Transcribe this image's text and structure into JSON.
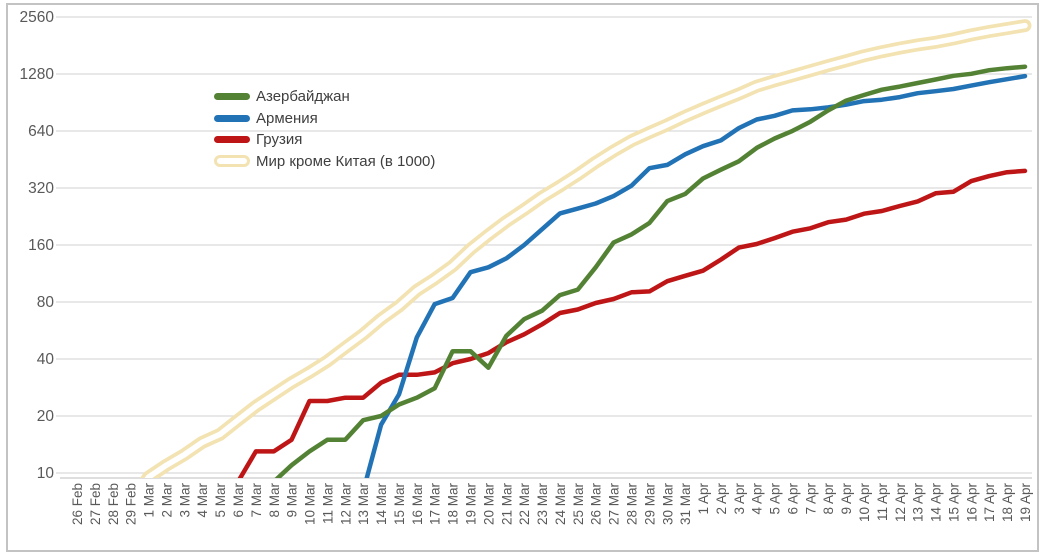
{
  "frame": {
    "border_color": "#C3C3C3",
    "background": "#FFFFFF"
  },
  "axis_style": {
    "grid_color": "#D9D9D9",
    "axis_line_color": "#C9C9C9",
    "tick_label_color": "#595959"
  },
  "legend": {
    "position": "inside-top-left",
    "text_color": "#3F3F3F"
  },
  "chart_data": {
    "type": "line",
    "title": "",
    "xlabel": "",
    "ylabel": "",
    "y_scale": "log2",
    "ylim": [
      10,
      2560
    ],
    "grid": "horizontal",
    "legend_position": "top-left-inside",
    "y_ticks": [
      10,
      20,
      40,
      80,
      160,
      320,
      640,
      1280,
      2560
    ],
    "x": [
      "26 Feb",
      "27 Feb",
      "28 Feb",
      "29 Feb",
      "1 Mar",
      "2 Mar",
      "3 Mar",
      "4 Mar",
      "5 Mar",
      "6 Mar",
      "7 Mar",
      "8 Mar",
      "9 Mar",
      "10 Mar",
      "11 Mar",
      "12 Mar",
      "13 Mar",
      "14 Mar",
      "15 Mar",
      "16 Mar",
      "17 Mar",
      "18 Mar",
      "19 Mar",
      "20 Mar",
      "21 Mar",
      "22 Mar",
      "23 Mar",
      "24 Mar",
      "25 Mar",
      "26 Mar",
      "27 Mar",
      "28 Mar",
      "29 Mar",
      "30 Mar",
      "31 Mar",
      "1 Apr",
      "2 Apr",
      "3 Apr",
      "4 Apr",
      "5 Apr",
      "6 Apr",
      "7 Apr",
      "8 Apr",
      "9 Apr",
      "10 Apr",
      "11 Apr",
      "12 Apr",
      "13 Apr",
      "14 Apr",
      "15 Apr",
      "16 Apr",
      "17 Apr",
      "18 Apr",
      "19 Apr"
    ],
    "series": [
      {
        "name": "Азербайджан",
        "color": "#548235",
        "line_style": "solid",
        "values": [
          null,
          null,
          null,
          null,
          null,
          null,
          null,
          null,
          null,
          null,
          null,
          9,
          11,
          13,
          15,
          15,
          19,
          20,
          23,
          25,
          28,
          44,
          44,
          36,
          53,
          65,
          72,
          87,
          93,
          122,
          165,
          182,
          209,
          273,
          298,
          359,
          400,
          443,
          521,
          584,
          641,
          717,
          822,
          926,
          991,
          1058,
          1098,
          1148,
          1197,
          1253,
          1283,
          1340,
          1373,
          1398
        ]
      },
      {
        "name": "Армения",
        "color": "#2273B6",
        "line_style": "solid",
        "values": [
          null,
          null,
          null,
          null,
          null,
          null,
          null,
          null,
          null,
          null,
          null,
          null,
          null,
          null,
          null,
          4,
          8,
          18,
          26,
          52,
          78,
          84,
          115,
          122,
          136,
          160,
          194,
          235,
          249,
          265,
          290,
          329,
          407,
          424,
          482,
          532,
          571,
          663,
          736,
          770,
          822,
          833,
          853,
          881,
          921,
          937,
          967,
          1013,
          1039,
          1067,
          1111,
          1159,
          1201,
          1248
        ]
      },
      {
        "name": "Грузия",
        "color": "#BE1616",
        "line_style": "solid",
        "values": [
          null,
          null,
          null,
          null,
          null,
          null,
          null,
          null,
          9,
          9,
          13,
          13,
          15,
          24,
          24,
          25,
          25,
          30,
          33,
          33,
          34,
          38,
          40,
          43,
          49,
          54,
          61,
          70,
          73,
          79,
          83,
          90,
          91,
          103,
          110,
          117,
          134,
          155,
          162,
          174,
          188,
          196,
          211,
          218,
          234,
          242,
          257,
          272,
          300,
          306,
          348,
          370,
          388,
          394
        ]
      },
      {
        "name": "Мир кроме Китая (в 1000)",
        "color": "#F3E3B2",
        "line_style": "double-outline",
        "values": [
          3.5,
          4.5,
          5.5,
          7,
          9.5,
          11,
          12.5,
          14.5,
          16,
          19,
          22.5,
          26,
          30,
          34,
          39,
          46,
          54,
          65,
          76,
          92,
          106,
          124,
          152,
          181,
          213,
          246,
          287,
          327,
          376,
          438,
          502,
          569,
          628,
          690,
          765,
          840,
          920,
          1003,
          1104,
          1179,
          1252,
          1333,
          1418,
          1502,
          1598,
          1678,
          1753,
          1824,
          1883,
          1962,
          2059,
          2146,
          2224,
          2307
        ]
      }
    ]
  }
}
